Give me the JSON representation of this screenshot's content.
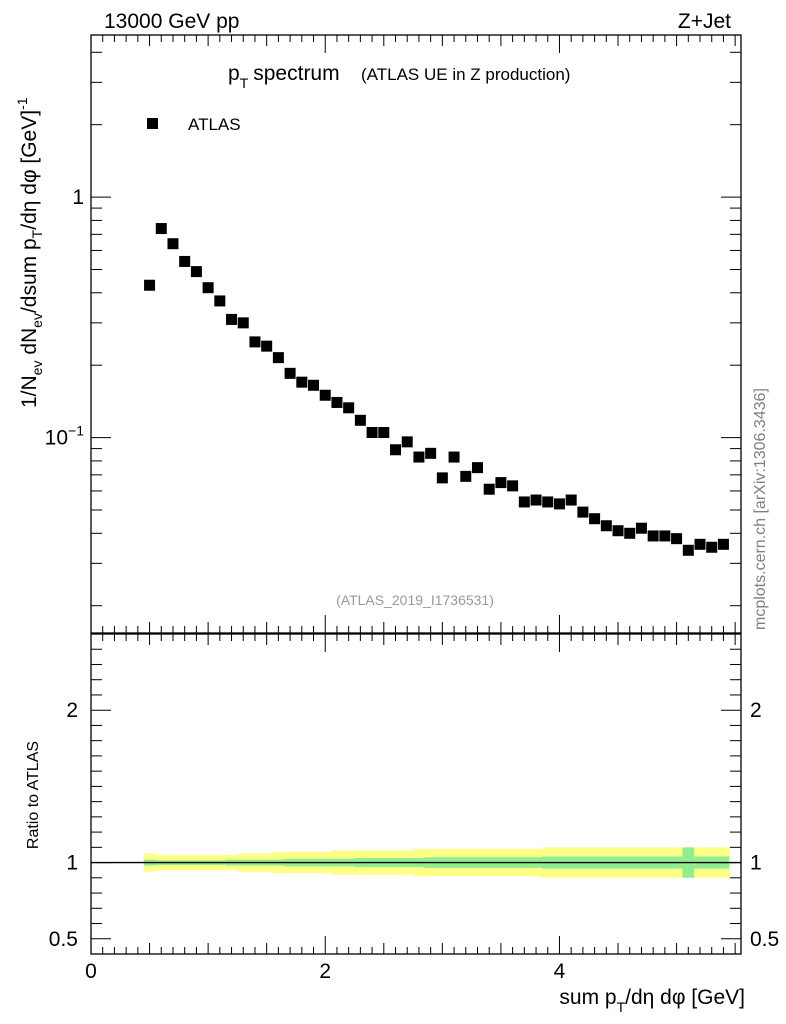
{
  "header": {
    "energy": "13000 GeV pp",
    "process": "Z+Jet"
  },
  "side_label": "mcplots.cern.ch [arXiv:1306.3436]",
  "chart_data": [
    {
      "type": "scatter",
      "title_main": "p",
      "title_sub": "T",
      "title_rest": "spectrum",
      "title_small": "(ATLAS UE in Z production)",
      "ylabel": "1/N_ev dN_ev/dsum p_T/dη dφ  [GeV]^-1",
      "yscale": "log",
      "ylim": [
        0.0154,
        4.72
      ],
      "xlim": [
        0,
        5.55
      ],
      "yticks": [
        {
          "value": 1,
          "label": "1"
        },
        {
          "value": 0.1,
          "label": "10",
          "exp": "−1"
        }
      ],
      "legend": [
        {
          "name": "ATLAS",
          "marker": "square"
        }
      ],
      "watermark": "(ATLAS_2019_I1736531)",
      "series": [
        {
          "name": "ATLAS",
          "x": [
            0.5,
            0.6,
            0.7,
            0.8,
            0.9,
            1.0,
            1.1,
            1.2,
            1.3,
            1.4,
            1.5,
            1.6,
            1.7,
            1.8,
            1.9,
            2.0,
            2.1,
            2.2,
            2.3,
            2.4,
            2.5,
            2.6,
            2.7,
            2.8,
            2.9,
            3.0,
            3.1,
            3.2,
            3.3,
            3.4,
            3.5,
            3.6,
            3.7,
            3.8,
            3.9,
            4.0,
            4.1,
            4.2,
            4.3,
            4.4,
            4.5,
            4.6,
            4.7,
            4.8,
            4.9,
            5.0,
            5.1,
            5.2,
            5.3,
            5.4
          ],
          "y": [
            0.43,
            0.74,
            0.64,
            0.54,
            0.49,
            0.42,
            0.37,
            0.31,
            0.3,
            0.25,
            0.24,
            0.215,
            0.185,
            0.17,
            0.165,
            0.15,
            0.14,
            0.133,
            0.118,
            0.105,
            0.105,
            0.089,
            0.096,
            0.083,
            0.086,
            0.068,
            0.083,
            0.069,
            0.075,
            0.061,
            0.065,
            0.063,
            0.054,
            0.055,
            0.054,
            0.053,
            0.055,
            0.049,
            0.046,
            0.043,
            0.041,
            0.04,
            0.042,
            0.039,
            0.039,
            0.038,
            0.034,
            0.036,
            0.035,
            0.036
          ]
        }
      ]
    },
    {
      "type": "area",
      "ylabel": "Ratio to ATLAS",
      "xlabel": "sum p_T/dη dφ [GeV]",
      "ylim": [
        0.4,
        2.5
      ],
      "xlim": [
        0,
        5.55
      ],
      "xticks": [
        0,
        2,
        4
      ],
      "xtick_labels": [
        "0",
        "2",
        "4"
      ],
      "yticks": [
        0.5,
        1,
        2
      ],
      "ytick_labels": [
        "0.5",
        "1",
        "2"
      ],
      "reference_line": 1,
      "bands": [
        {
          "name": "total uncertainty",
          "color": "#ffff88",
          "half_width": [
            0.06,
            0.05,
            0.05,
            0.05,
            0.05,
            0.05,
            0.05,
            0.05,
            0.06,
            0.06,
            0.06,
            0.07,
            0.07,
            0.07,
            0.07,
            0.07,
            0.08,
            0.08,
            0.08,
            0.08,
            0.08,
            0.08,
            0.08,
            0.09,
            0.09,
            0.09,
            0.09,
            0.09,
            0.09,
            0.09,
            0.09,
            0.09,
            0.09,
            0.09,
            0.1,
            0.1,
            0.1,
            0.1,
            0.1,
            0.1,
            0.1,
            0.1,
            0.1,
            0.1,
            0.1,
            0.1,
            0.1,
            0.1,
            0.1,
            0.1
          ]
        },
        {
          "name": "statistical uncertainty",
          "color": "#90ee90",
          "half_width": [
            0.02,
            0.015,
            0.015,
            0.015,
            0.015,
            0.015,
            0.015,
            0.02,
            0.02,
            0.02,
            0.02,
            0.02,
            0.025,
            0.025,
            0.025,
            0.025,
            0.025,
            0.025,
            0.03,
            0.03,
            0.03,
            0.03,
            0.03,
            0.03,
            0.035,
            0.035,
            0.035,
            0.035,
            0.035,
            0.035,
            0.035,
            0.035,
            0.035,
            0.035,
            0.04,
            0.04,
            0.04,
            0.04,
            0.04,
            0.04,
            0.04,
            0.04,
            0.04,
            0.04,
            0.04,
            0.04,
            0.1,
            0.04,
            0.04,
            0.04
          ]
        }
      ]
    }
  ],
  "colors": {
    "marker": "#000000",
    "watermark": "#999999",
    "side_label": "#808080"
  }
}
